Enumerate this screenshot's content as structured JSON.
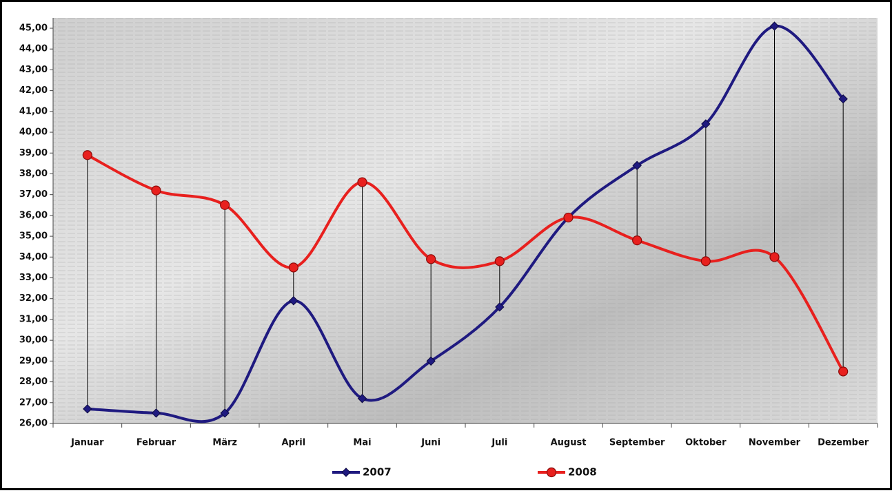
{
  "chart_data": {
    "type": "line",
    "categories": [
      "Januar",
      "Februar",
      "März",
      "April",
      "Mai",
      "Juni",
      "Juli",
      "August",
      "September",
      "Oktober",
      "November",
      "Dezember"
    ],
    "series": [
      {
        "name": "2007",
        "color": "#1f1a80",
        "marker": "diamond",
        "values": [
          26.7,
          26.5,
          26.5,
          31.9,
          27.2,
          29.0,
          31.6,
          35.9,
          38.4,
          40.4,
          45.1,
          41.6
        ]
      },
      {
        "name": "2008",
        "color": "#e8201e",
        "marker": "circle",
        "values": [
          38.9,
          37.2,
          36.5,
          33.5,
          37.6,
          33.9,
          33.8,
          35.9,
          34.8,
          33.8,
          34.0,
          28.5
        ]
      }
    ],
    "ylim": [
      26,
      45
    ],
    "yticks": [
      {
        "value": 26,
        "label": "26,00"
      },
      {
        "value": 27,
        "label": "27,00"
      },
      {
        "value": 28,
        "label": "28,00"
      },
      {
        "value": 29,
        "label": "29,00"
      },
      {
        "value": 30,
        "label": "30,00"
      },
      {
        "value": 31,
        "label": "31,00"
      },
      {
        "value": 32,
        "label": "32,00"
      },
      {
        "value": 33,
        "label": "33,00"
      },
      {
        "value": 34,
        "label": "34,00"
      },
      {
        "value": 35,
        "label": "35,00"
      },
      {
        "value": 36,
        "label": "36,00"
      },
      {
        "value": 37,
        "label": "37,00"
      },
      {
        "value": 38,
        "label": "38,00"
      },
      {
        "value": 39,
        "label": "39,00"
      },
      {
        "value": 40,
        "label": "40,00"
      },
      {
        "value": 41,
        "label": "41,00"
      },
      {
        "value": 42,
        "label": "42,00"
      },
      {
        "value": 43,
        "label": "43,00"
      },
      {
        "value": 44,
        "label": "44,00"
      },
      {
        "value": 45,
        "label": "45,00"
      }
    ],
    "smooth": true,
    "high_low_lines": true
  }
}
